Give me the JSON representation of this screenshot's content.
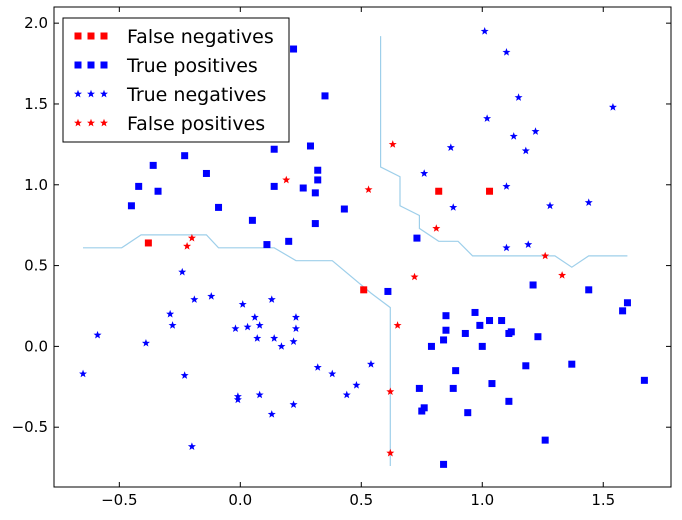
{
  "chart_data": {
    "type": "scatter",
    "title": "",
    "xlabel": "",
    "ylabel": "",
    "xlim": [
      -0.77,
      1.78
    ],
    "ylim": [
      -0.87,
      2.1
    ],
    "xticks": [
      -0.5,
      0.0,
      0.5,
      1.0,
      1.5
    ],
    "xtick_labels": [
      "−0.5",
      "0.0",
      "0.5",
      "1.0",
      "1.5"
    ],
    "yticks": [
      -0.5,
      0.0,
      0.5,
      1.0,
      1.5,
      2.0
    ],
    "ytick_labels": [
      "−0.5",
      "0.0",
      "0.5",
      "1.0",
      "1.5",
      "2.0"
    ],
    "grid": false,
    "legend_position": "top-left",
    "series": [
      {
        "name": "False negatives",
        "marker": "square",
        "color": "#ff0000",
        "points": [
          [
            -0.38,
            0.64
          ],
          [
            0.51,
            0.35
          ],
          [
            0.82,
            0.96
          ],
          [
            1.03,
            0.96
          ]
        ]
      },
      {
        "name": "True positives",
        "marker": "square",
        "color": "#0000ff",
        "points": [
          [
            -0.45,
            0.87
          ],
          [
            -0.42,
            0.99
          ],
          [
            -0.36,
            1.12
          ],
          [
            -0.34,
            0.96
          ],
          [
            -0.23,
            1.18
          ],
          [
            -0.14,
            1.07
          ],
          [
            -0.09,
            0.86
          ],
          [
            0.05,
            0.78
          ],
          [
            0.11,
            0.63
          ],
          [
            0.14,
            1.22
          ],
          [
            0.14,
            0.99
          ],
          [
            0.2,
            0.65
          ],
          [
            0.22,
            1.84
          ],
          [
            0.26,
            0.98
          ],
          [
            0.29,
            1.24
          ],
          [
            0.31,
            0.95
          ],
          [
            0.32,
            1.03
          ],
          [
            0.32,
            1.09
          ],
          [
            0.31,
            0.76
          ],
          [
            0.35,
            1.55
          ],
          [
            0.43,
            0.85
          ],
          [
            0.61,
            0.34
          ],
          [
            0.73,
            0.67
          ],
          [
            0.74,
            -0.26
          ],
          [
            0.76,
            -0.38
          ],
          [
            0.75,
            -0.4
          ],
          [
            0.79,
            0.0
          ],
          [
            0.85,
            0.19
          ],
          [
            0.85,
            0.1
          ],
          [
            0.84,
            0.04
          ],
          [
            0.84,
            -0.73
          ],
          [
            0.88,
            -0.26
          ],
          [
            0.89,
            -0.15
          ],
          [
            0.93,
            0.08
          ],
          [
            0.94,
            -0.41
          ],
          [
            0.97,
            0.21
          ],
          [
            0.99,
            0.13
          ],
          [
            1.0,
            0.0
          ],
          [
            1.03,
            0.16
          ],
          [
            1.04,
            -0.23
          ],
          [
            1.08,
            0.16
          ],
          [
            1.11,
            0.08
          ],
          [
            1.12,
            0.09
          ],
          [
            1.11,
            -0.34
          ],
          [
            1.18,
            -0.12
          ],
          [
            1.21,
            0.38
          ],
          [
            1.23,
            0.06
          ],
          [
            1.26,
            -0.58
          ],
          [
            1.37,
            -0.11
          ],
          [
            1.44,
            0.35
          ],
          [
            1.58,
            0.22
          ],
          [
            1.6,
            0.27
          ],
          [
            1.67,
            -0.21
          ]
        ]
      },
      {
        "name": "True negatives",
        "marker": "star",
        "color": "#0000ff",
        "points": [
          [
            -0.65,
            -0.17
          ],
          [
            -0.59,
            0.07
          ],
          [
            -0.39,
            0.02
          ],
          [
            -0.29,
            0.2
          ],
          [
            -0.28,
            0.13
          ],
          [
            -0.24,
            0.46
          ],
          [
            -0.23,
            -0.18
          ],
          [
            -0.2,
            -0.62
          ],
          [
            -0.19,
            0.29
          ],
          [
            -0.12,
            0.31
          ],
          [
            -0.02,
            0.11
          ],
          [
            -0.01,
            -0.31
          ],
          [
            -0.01,
            -0.33
          ],
          [
            0.01,
            0.26
          ],
          [
            0.03,
            0.12
          ],
          [
            0.06,
            0.18
          ],
          [
            0.07,
            0.05
          ],
          [
            0.08,
            0.13
          ],
          [
            0.08,
            -0.3
          ],
          [
            0.13,
            0.29
          ],
          [
            0.13,
            -0.42
          ],
          [
            0.14,
            0.05
          ],
          [
            0.17,
            0.0
          ],
          [
            0.23,
            0.18
          ],
          [
            0.23,
            0.11
          ],
          [
            0.22,
            0.03
          ],
          [
            0.22,
            -0.36
          ],
          [
            0.32,
            -0.13
          ],
          [
            0.38,
            -0.17
          ],
          [
            0.44,
            -0.3
          ],
          [
            0.48,
            -0.24
          ],
          [
            0.54,
            -0.11
          ],
          [
            0.76,
            1.07
          ],
          [
            0.87,
            1.23
          ],
          [
            0.88,
            0.86
          ],
          [
            1.01,
            1.95
          ],
          [
            1.02,
            1.41
          ],
          [
            1.1,
            1.82
          ],
          [
            1.1,
            0.99
          ],
          [
            1.1,
            0.61
          ],
          [
            1.13,
            1.3
          ],
          [
            1.15,
            1.54
          ],
          [
            1.18,
            1.21
          ],
          [
            1.19,
            0.63
          ],
          [
            1.22,
            1.33
          ],
          [
            1.28,
            0.87
          ],
          [
            1.44,
            0.89
          ],
          [
            1.54,
            1.48
          ]
        ]
      },
      {
        "name": "False positives",
        "marker": "star",
        "color": "#ff0000",
        "points": [
          [
            -0.22,
            0.62
          ],
          [
            -0.2,
            0.67
          ],
          [
            0.19,
            1.03
          ],
          [
            0.53,
            0.97
          ],
          [
            0.63,
            1.25
          ],
          [
            0.65,
            0.13
          ],
          [
            0.62,
            -0.28
          ],
          [
            0.62,
            -0.66
          ],
          [
            0.72,
            0.43
          ],
          [
            0.81,
            0.73
          ],
          [
            1.26,
            0.56
          ],
          [
            1.33,
            0.44
          ]
        ]
      }
    ],
    "decision_boundary": {
      "name": "",
      "color": "#9ecfea",
      "segments": [
        [
          [
            -0.65,
            0.61
          ],
          [
            -0.49,
            0.61
          ],
          [
            -0.41,
            0.69
          ],
          [
            -0.14,
            0.69
          ],
          [
            -0.09,
            0.61
          ],
          [
            0.14,
            0.61
          ],
          [
            0.23,
            0.53
          ],
          [
            0.38,
            0.53
          ],
          [
            0.54,
            0.33
          ],
          [
            0.62,
            0.24
          ],
          [
            0.62,
            -0.74
          ]
        ],
        [
          [
            0.58,
            1.92
          ],
          [
            0.58,
            1.11
          ],
          [
            0.66,
            1.05
          ],
          [
            0.66,
            0.87
          ],
          [
            0.74,
            0.81
          ],
          [
            0.74,
            0.73
          ],
          [
            0.82,
            0.65
          ],
          [
            0.9,
            0.65
          ],
          [
            0.96,
            0.56
          ],
          [
            1.3,
            0.56
          ],
          [
            1.37,
            0.49
          ],
          [
            1.44,
            0.56
          ],
          [
            1.6,
            0.56
          ]
        ]
      ]
    }
  }
}
